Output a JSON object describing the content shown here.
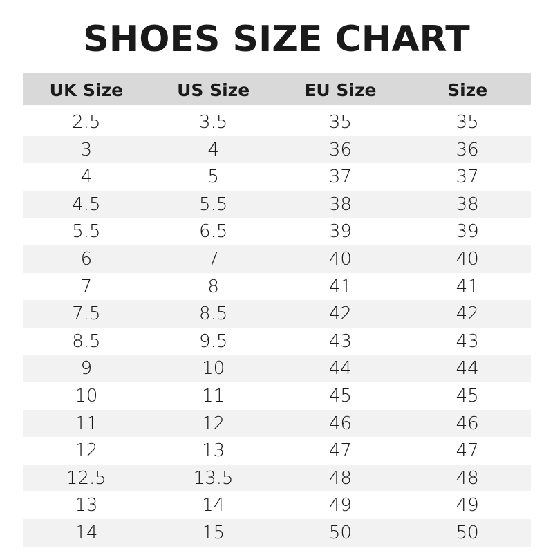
{
  "title": "SHOES SIZE CHART",
  "colors": {
    "header_bg": "#d9d9d9",
    "alt_row_bg": "#f2f2f2"
  },
  "table": {
    "headers": [
      "UK Size",
      "US Size",
      "EU Size",
      "Size"
    ],
    "rows": [
      [
        "2.5",
        "3.5",
        "35",
        "35"
      ],
      [
        "3",
        "4",
        "36",
        "36"
      ],
      [
        "4",
        "5",
        "37",
        "37"
      ],
      [
        "4.5",
        "5.5",
        "38",
        "38"
      ],
      [
        "5.5",
        "6.5",
        "39",
        "39"
      ],
      [
        "6",
        "7",
        "40",
        "40"
      ],
      [
        "7",
        "8",
        "41",
        "41"
      ],
      [
        "7.5",
        "8.5",
        "42",
        "42"
      ],
      [
        "8.5",
        "9.5",
        "43",
        "43"
      ],
      [
        "9",
        "10",
        "44",
        "44"
      ],
      [
        "10",
        "11",
        "45",
        "45"
      ],
      [
        "11",
        "12",
        "46",
        "46"
      ],
      [
        "12",
        "13",
        "47",
        "47"
      ],
      [
        "12.5",
        "13.5",
        "48",
        "48"
      ],
      [
        "13",
        "14",
        "49",
        "49"
      ],
      [
        "14",
        "15",
        "50",
        "50"
      ]
    ]
  }
}
